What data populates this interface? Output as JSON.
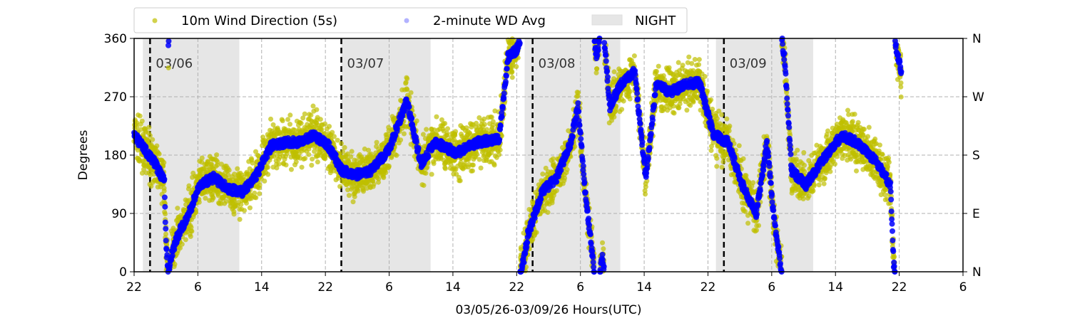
{
  "chart_data": {
    "type": "scatter",
    "xlabel": "03/05/26-03/09/26  Hours(UTC)",
    "ylabel": "Degrees",
    "xlim_hours_since_0305_00utc": [
      22,
      126
    ],
    "ylim": [
      0,
      360
    ],
    "x_tick_values": [
      22,
      30,
      38,
      46,
      54,
      62,
      70,
      78,
      86,
      94,
      102,
      110,
      118,
      126
    ],
    "x_tick_labels": [
      "22",
      "6",
      "14",
      "22",
      "6",
      "14",
      "22",
      "6",
      "14",
      "22",
      "6",
      "14",
      "22",
      "6"
    ],
    "y_ticks": [
      0,
      90,
      180,
      270,
      360
    ],
    "y_tick_labels": [
      "0",
      "90",
      "180",
      "270",
      "360"
    ],
    "y2_tick_labels": [
      "N",
      "E",
      "S",
      "W",
      "N"
    ],
    "grid": true,
    "legend": {
      "placement": "top-outside",
      "entries": [
        "10m Wind Direction (5s)",
        "2-minute WD Avg",
        "NIGHT"
      ]
    },
    "day_markers": [
      {
        "hour": 24,
        "label": "03/06"
      },
      {
        "hour": 48,
        "label": "03/07"
      },
      {
        "hour": 72,
        "label": "03/08"
      },
      {
        "hour": 96,
        "label": "03/09"
      }
    ],
    "night_periods": [
      [
        23.1,
        35.2
      ],
      [
        48,
        59.2
      ],
      [
        71,
        83
      ],
      [
        95,
        107.2
      ]
    ],
    "series": [
      {
        "name": "2-minute WD Avg",
        "color": "#0000ff",
        "points_hour_deg": [
          [
            22,
            211
          ],
          [
            23,
            194
          ],
          [
            24.4,
            172
          ],
          [
            25.8,
            139
          ],
          [
            26,
            46
          ],
          [
            26.3,
            355
          ],
          [
            26.7,
            24
          ],
          [
            27.5,
            57
          ],
          [
            28.9,
            90
          ],
          [
            30.2,
            134
          ],
          [
            32,
            145
          ],
          [
            33.8,
            128
          ],
          [
            35.6,
            123
          ],
          [
            37.4,
            150
          ],
          [
            39.2,
            194
          ],
          [
            41,
            200
          ],
          [
            42.8,
            200
          ],
          [
            44.6,
            211
          ],
          [
            46.4,
            194
          ],
          [
            48.1,
            156
          ],
          [
            49.9,
            150
          ],
          [
            51.7,
            156
          ],
          [
            54,
            189
          ],
          [
            56.2,
            265
          ],
          [
            58,
            167
          ],
          [
            59.8,
            200
          ],
          [
            62.5,
            183
          ],
          [
            65.2,
            200
          ],
          [
            67.8,
            205
          ],
          [
            68.9,
            331
          ],
          [
            70,
            342
          ],
          [
            71,
            24
          ],
          [
            71.4,
            57
          ],
          [
            73.2,
            123
          ],
          [
            75,
            145
          ],
          [
            76.8,
            200
          ],
          [
            77.7,
            255
          ],
          [
            78.6,
            123
          ],
          [
            80,
            331
          ],
          [
            80.8,
            24
          ],
          [
            81.7,
            255
          ],
          [
            83,
            288
          ],
          [
            84.8,
            309
          ],
          [
            86.2,
            145
          ],
          [
            87.5,
            288
          ],
          [
            89.3,
            277
          ],
          [
            91.1,
            288
          ],
          [
            92.9,
            293
          ],
          [
            94.7,
            211
          ],
          [
            96.5,
            200
          ],
          [
            98.3,
            134
          ],
          [
            100.1,
            90
          ],
          [
            101.4,
            200
          ],
          [
            102.3,
            79
          ],
          [
            103.6,
            331
          ],
          [
            104.5,
            156
          ],
          [
            106.3,
            134
          ],
          [
            108.1,
            167
          ],
          [
            110.8,
            211
          ],
          [
            112.6,
            200
          ],
          [
            115.3,
            167
          ],
          [
            116.9,
            134
          ],
          [
            117.3,
            13
          ],
          [
            117.8,
            331
          ],
          [
            118.3,
            309
          ]
        ]
      },
      {
        "name": "10m Wind Direction (5s)",
        "color": "#bfbf00",
        "spread_deg_around_avg": 28
      }
    ],
    "night_color": "#e6e6e6"
  }
}
